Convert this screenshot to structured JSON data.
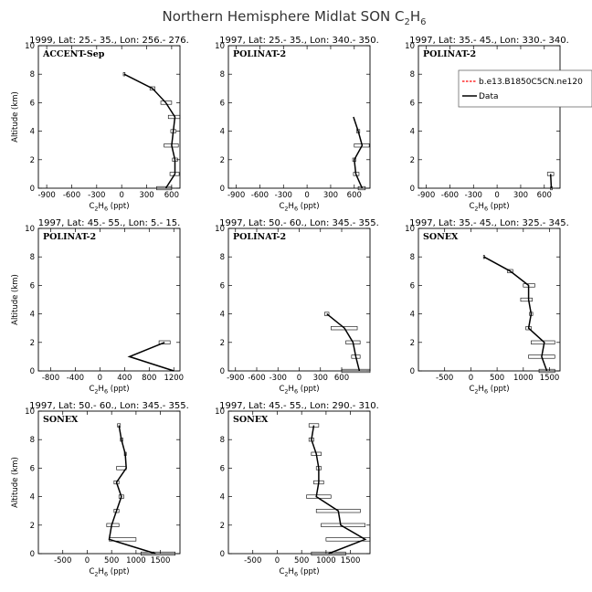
{
  "title": "Northern Hemisphere Midlat SON C",
  "title_sub": "2",
  "title_tail": "H",
  "title_sub2": "6",
  "legend": {
    "model": "b.e13.B1850C5CN.ne120",
    "data": "Data"
  },
  "colors": {
    "model": "#ff0000",
    "data": "#000000"
  },
  "chart_data": [
    {
      "type": "line",
      "region": "1999, Lat: 25.- 35., Lon: 256.- 276.",
      "campaign": "ACCENT-Sep",
      "xlim": [
        -1000,
        700
      ],
      "xticks": [
        -900,
        -600,
        -300,
        0,
        300,
        600
      ],
      "ylim": [
        0,
        10
      ],
      "yticks": [
        0,
        2,
        4,
        6,
        8,
        10
      ],
      "xlabel": "C2H6 (ppt)",
      "ylabel": "Altitude (km)",
      "legend": false,
      "data": [
        {
          "y": 0,
          "x": 530,
          "lo": 420,
          "hi": 600
        },
        {
          "y": 1,
          "x": 640,
          "lo": 580,
          "hi": 690
        },
        {
          "y": 2,
          "x": 640,
          "lo": 610,
          "hi": 670
        },
        {
          "y": 3,
          "x": 600,
          "lo": 510,
          "hi": 680
        },
        {
          "y": 4,
          "x": 620,
          "lo": 590,
          "hi": 650
        },
        {
          "y": 5,
          "x": 640,
          "lo": 560,
          "hi": 700
        },
        {
          "y": 6,
          "x": 530,
          "lo": 470,
          "hi": 600
        },
        {
          "y": 7,
          "x": 370,
          "lo": 340,
          "hi": 400
        },
        {
          "y": 8,
          "x": 30,
          "lo": 20,
          "hi": 40
        }
      ]
    },
    {
      "type": "line",
      "region": "1997, Lat: 25.- 35., Lon: 340.- 350.",
      "campaign": "POLINAT-2",
      "xlim": [
        -1000,
        800
      ],
      "xticks": [
        -900,
        -600,
        -300,
        0,
        300,
        600
      ],
      "ylim": [
        0,
        10
      ],
      "yticks": [
        0,
        2,
        4,
        6,
        8,
        10
      ],
      "xlabel": "C2H6 (ppt)",
      "ylabel": "",
      "legend": false,
      "data": [
        {
          "y": 0,
          "x": 700,
          "lo": 650,
          "hi": 740
        },
        {
          "y": 1,
          "x": 620,
          "lo": 590,
          "hi": 660
        },
        {
          "y": 2,
          "x": 600,
          "lo": 580,
          "hi": 620
        },
        {
          "y": 3,
          "x": 700,
          "lo": 600,
          "hi": 790
        },
        {
          "y": 4,
          "x": 650,
          "lo": 630,
          "hi": 670
        },
        {
          "y": 5,
          "x": 590,
          "lo": 590,
          "hi": 590
        }
      ]
    },
    {
      "type": "line",
      "region": "1997, Lat: 35.- 45., Lon: 330.- 340.",
      "campaign": "POLINAT-2",
      "xlim": [
        -1000,
        800
      ],
      "xticks": [
        -900,
        -600,
        -300,
        0,
        300,
        600
      ],
      "ylim": [
        0,
        10
      ],
      "yticks": [
        0,
        2,
        4,
        6,
        8,
        10
      ],
      "xlabel": "C2H6 (ppt)",
      "ylabel": "",
      "legend": true,
      "data": [
        {
          "y": 0,
          "x": 690,
          "lo": 680,
          "hi": 700
        },
        {
          "y": 1,
          "x": 680,
          "lo": 640,
          "hi": 720
        }
      ]
    },
    {
      "type": "line",
      "region": "1997, Lat: 45.- 55., Lon: 5.- 15.",
      "campaign": "POLINAT-2",
      "xlim": [
        -1000,
        1300
      ],
      "xticks": [
        -800,
        -400,
        0,
        400,
        800,
        1200
      ],
      "ylim": [
        0,
        10
      ],
      "yticks": [
        0,
        2,
        4,
        6,
        8,
        10
      ],
      "xlabel": "C2H6 (ppt)",
      "ylabel": "Altitude (km)",
      "legend": false,
      "data": [
        {
          "y": 0,
          "x": 1200,
          "lo": 1200,
          "hi": 1200
        },
        {
          "y": 1,
          "x": 480,
          "lo": 480,
          "hi": 480
        },
        {
          "y": 2,
          "x": 1050,
          "lo": 960,
          "hi": 1140
        }
      ]
    },
    {
      "type": "line",
      "region": "1997, Lat: 50.- 60., Lon: 345.- 355.",
      "campaign": "POLINAT-2",
      "xlim": [
        -1000,
        1000
      ],
      "xticks": [
        -900,
        -600,
        -300,
        0,
        300,
        600
      ],
      "ylim": [
        0,
        10
      ],
      "yticks": [
        0,
        2,
        4,
        6,
        8,
        10
      ],
      "xlabel": "C2H6 (ppt)",
      "ylabel": "",
      "legend": false,
      "data": [
        {
          "y": 0,
          "x": 850,
          "lo": 600,
          "hi": 1000
        },
        {
          "y": 1,
          "x": 800,
          "lo": 740,
          "hi": 860
        },
        {
          "y": 2,
          "x": 760,
          "lo": 660,
          "hi": 860
        },
        {
          "y": 3,
          "x": 640,
          "lo": 450,
          "hi": 820
        },
        {
          "y": 4,
          "x": 390,
          "lo": 360,
          "hi": 420
        }
      ]
    },
    {
      "type": "line",
      "region": "1997, Lat: 35.- 45., Lon: 325.- 345.",
      "campaign": "SONEX",
      "xlim": [
        -1000,
        1700
      ],
      "xticks": [
        -500,
        0,
        500,
        1000,
        1500
      ],
      "ylim": [
        0,
        10
      ],
      "yticks": [
        0,
        2,
        4,
        6,
        8,
        10
      ],
      "xlabel": "C2H6 (ppt)",
      "ylabel": "",
      "legend": false,
      "data": [
        {
          "y": 0,
          "x": 1450,
          "lo": 1300,
          "hi": 1600
        },
        {
          "y": 1,
          "x": 1350,
          "lo": 1100,
          "hi": 1600
        },
        {
          "y": 2,
          "x": 1400,
          "lo": 1150,
          "hi": 1600
        },
        {
          "y": 3,
          "x": 1100,
          "lo": 1050,
          "hi": 1150
        },
        {
          "y": 4,
          "x": 1150,
          "lo": 1120,
          "hi": 1180
        },
        {
          "y": 5,
          "x": 1100,
          "lo": 950,
          "hi": 1170
        },
        {
          "y": 6,
          "x": 1100,
          "lo": 1000,
          "hi": 1220
        },
        {
          "y": 7,
          "x": 750,
          "lo": 700,
          "hi": 800
        },
        {
          "y": 8,
          "x": 250,
          "lo": 240,
          "hi": 260
        }
      ]
    },
    {
      "type": "line",
      "region": "1997, Lat: 50.- 60., Lon: 345.- 355.",
      "campaign": "SONEX",
      "xlim": [
        -1000,
        1900
      ],
      "xticks": [
        -500,
        0,
        500,
        1000,
        1500
      ],
      "ylim": [
        0,
        10
      ],
      "yticks": [
        0,
        2,
        4,
        6,
        8,
        10
      ],
      "xlabel": "C2H6 (ppt)",
      "ylabel": "Altitude (km)",
      "legend": false,
      "data": [
        {
          "y": 0,
          "x": 1400,
          "lo": 1100,
          "hi": 1800
        },
        {
          "y": 1,
          "x": 450,
          "lo": 450,
          "hi": 1000
        },
        {
          "y": 2,
          "x": 500,
          "lo": 400,
          "hi": 650
        },
        {
          "y": 3,
          "x": 600,
          "lo": 550,
          "hi": 650
        },
        {
          "y": 4,
          "x": 700,
          "lo": 650,
          "hi": 750
        },
        {
          "y": 5,
          "x": 600,
          "lo": 550,
          "hi": 650
        },
        {
          "y": 6,
          "x": 800,
          "lo": 600,
          "hi": 800
        },
        {
          "y": 7,
          "x": 780,
          "lo": 760,
          "hi": 800
        },
        {
          "y": 8,
          "x": 700,
          "lo": 680,
          "hi": 730
        },
        {
          "y": 9,
          "x": 650,
          "lo": 620,
          "hi": 680
        }
      ]
    },
    {
      "type": "line",
      "region": "1997, Lat: 45.- 55., Lon: 290.- 310.",
      "campaign": "SONEX",
      "xlim": [
        -1000,
        1900
      ],
      "xticks": [
        -500,
        0,
        500,
        1000,
        1500
      ],
      "ylim": [
        0,
        10
      ],
      "yticks": [
        0,
        2,
        4,
        6,
        8,
        10
      ],
      "xlabel": "C2H6 (ppt)",
      "ylabel": "",
      "legend": false,
      "data": [
        {
          "y": 0,
          "x": 1050,
          "lo": 700,
          "hi": 1400
        },
        {
          "y": 1,
          "x": 1800,
          "lo": 1000,
          "hi": 1900
        },
        {
          "y": 2,
          "x": 1300,
          "lo": 900,
          "hi": 1800
        },
        {
          "y": 3,
          "x": 1250,
          "lo": 800,
          "hi": 1700
        },
        {
          "y": 4,
          "x": 800,
          "lo": 600,
          "hi": 1100
        },
        {
          "y": 5,
          "x": 850,
          "lo": 750,
          "hi": 950
        },
        {
          "y": 6,
          "x": 850,
          "lo": 800,
          "hi": 900
        },
        {
          "y": 7,
          "x": 800,
          "lo": 700,
          "hi": 900
        },
        {
          "y": 8,
          "x": 700,
          "lo": 650,
          "hi": 750
        },
        {
          "y": 9,
          "x": 750,
          "lo": 650,
          "hi": 850
        }
      ]
    }
  ]
}
